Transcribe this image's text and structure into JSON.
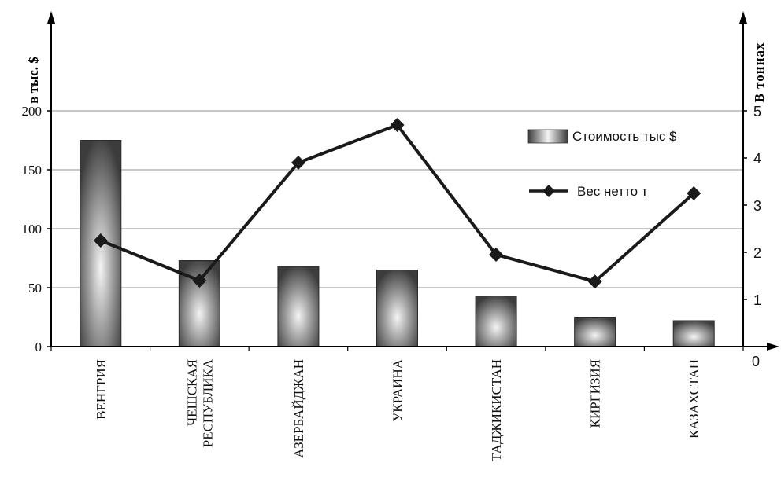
{
  "chart_data": {
    "type": "bar",
    "categories": [
      "ВЕНГРИЯ",
      "ЧЕШСКАЯ РЕСПУБЛИКА",
      "АЗЕРБАЙДЖАН",
      "УКРАИНА",
      "ТАДЖИКИСТАН",
      "КИРГИЗИЯ",
      "КАЗАХСТАН"
    ],
    "category_label_lines": [
      [
        "ВЕНГРИЯ"
      ],
      [
        "ЧЕШСКАЯ",
        "РЕСПУБЛИКА"
      ],
      [
        "АЗЕРБАЙДЖАН"
      ],
      [
        "УКРАИНА"
      ],
      [
        "ТАДЖИКИСТАН"
      ],
      [
        "КИРГИЗИЯ"
      ],
      [
        "КАЗАХСТАН"
      ]
    ],
    "series": [
      {
        "name": "Стоимость тыс $",
        "type": "bar",
        "axis": "left",
        "values": [
          175,
          73,
          68,
          65,
          43,
          25,
          22
        ]
      },
      {
        "name": "Вес нетто т",
        "type": "line",
        "axis": "right",
        "marker": "diamond",
        "values": [
          2.25,
          1.4,
          3.9,
          4.7,
          1.95,
          1.38,
          3.25
        ]
      }
    ],
    "ylabel_left": "в тыс. $",
    "ylabel_right": "В тоннах",
    "ylim_left": [
      0,
      200
    ],
    "ylim_right": [
      0,
      5
    ],
    "yticks_left": [
      0,
      50,
      100,
      150,
      200
    ],
    "yticks_right": [
      1,
      2,
      3,
      4,
      5
    ],
    "right_zero_label": "0",
    "grid": true,
    "legend_position": "upper-right",
    "colors": {
      "bar_dark": "#3c3c3c",
      "bar_light": "#f4f4f4",
      "line": "#1a1a1a",
      "grid": "#a8a8a8",
      "axis": "#000000"
    }
  }
}
